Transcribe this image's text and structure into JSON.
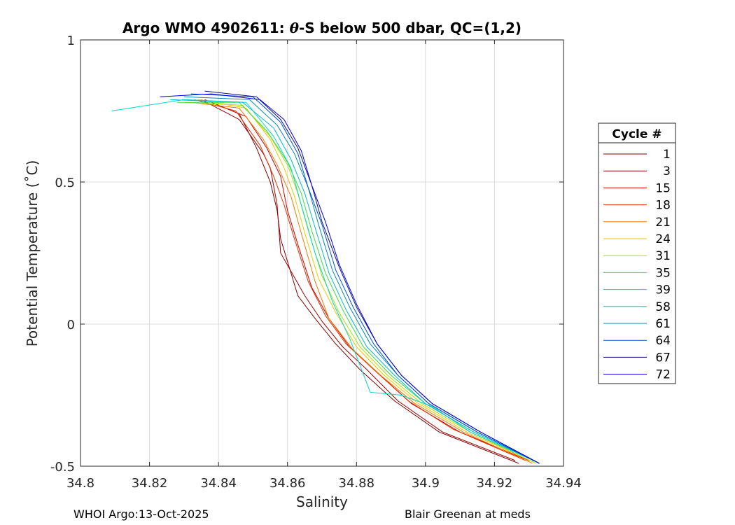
{
  "footer": {
    "left": "WHOI Argo:13-Oct-2025",
    "right": "Blair Greenan at meds"
  },
  "chart_data": {
    "type": "line",
    "title_prefix": "Argo WMO 4902611: ",
    "title_theta": "θ",
    "title_suffix": "-S below 500 dbar,  QC=(1,2)",
    "xlabel": "Salinity",
    "ylabel": "Potential Temperature (˚C)",
    "xlim": [
      34.8,
      34.94
    ],
    "ylim": [
      -0.5,
      1
    ],
    "xticks": [
      34.8,
      34.82,
      34.84,
      34.86,
      34.88,
      34.9,
      34.92,
      34.94
    ],
    "xtick_labels": [
      "34.8",
      "34.82",
      "34.84",
      "34.86",
      "34.88",
      "34.9",
      "34.92",
      "34.94"
    ],
    "yticks": [
      -0.5,
      0,
      0.5,
      1
    ],
    "ytick_labels": [
      "-0.5",
      "0",
      "0.5",
      "1"
    ],
    "grid": true,
    "legend_title": "Cycle #",
    "legend_position": "right",
    "series": [
      {
        "name": "1",
        "color": "#800000",
        "x": [
          34.836,
          34.846,
          34.851,
          34.855,
          34.857,
          34.858,
          34.863,
          34.868,
          34.874,
          34.881,
          34.891,
          34.904,
          34.927
        ],
        "y": [
          0.79,
          0.74,
          0.62,
          0.5,
          0.4,
          0.3,
          0.1,
          0.02,
          -0.07,
          -0.16,
          -0.27,
          -0.38,
          -0.49
        ]
      },
      {
        "name": "3",
        "color": "#9a0000",
        "x": [
          34.835,
          34.846,
          34.853,
          34.855,
          34.857,
          34.858,
          34.865,
          34.87,
          34.876,
          34.883,
          34.892,
          34.905,
          34.926
        ],
        "y": [
          0.79,
          0.72,
          0.6,
          0.55,
          0.42,
          0.25,
          0.1,
          0.01,
          -0.08,
          -0.16,
          -0.27,
          -0.38,
          -0.48
        ]
      },
      {
        "name": "15",
        "color": "#cc0000",
        "x": [
          34.838,
          34.848,
          34.854,
          34.858,
          34.86,
          34.863,
          34.867,
          34.872,
          34.878,
          34.886,
          34.896,
          34.91,
          34.93
        ],
        "y": [
          0.78,
          0.73,
          0.62,
          0.52,
          0.4,
          0.28,
          0.13,
          0.02,
          -0.08,
          -0.17,
          -0.28,
          -0.38,
          -0.48
        ]
      },
      {
        "name": "18",
        "color": "#e03000",
        "x": [
          34.833,
          34.845,
          34.852,
          34.856,
          34.859,
          34.862,
          34.866,
          34.871,
          34.877,
          34.885,
          34.895,
          34.908,
          34.929
        ],
        "y": [
          0.79,
          0.75,
          0.63,
          0.52,
          0.42,
          0.3,
          0.15,
          0.03,
          -0.07,
          -0.16,
          -0.27,
          -0.37,
          -0.48
        ]
      },
      {
        "name": "21",
        "color": "#f07800",
        "x": [
          34.832,
          34.846,
          34.853,
          34.857,
          34.861,
          34.864,
          34.868,
          34.872,
          34.879,
          34.887,
          34.897,
          34.911,
          34.931
        ],
        "y": [
          0.78,
          0.76,
          0.65,
          0.56,
          0.45,
          0.32,
          0.15,
          0.02,
          -0.09,
          -0.18,
          -0.28,
          -0.38,
          -0.49
        ]
      },
      {
        "name": "24",
        "color": "#e8c800",
        "x": [
          34.834,
          34.848,
          34.855,
          34.859,
          34.862,
          34.865,
          34.869,
          34.874,
          34.88,
          34.888,
          34.898,
          34.912,
          34.932
        ],
        "y": [
          0.79,
          0.76,
          0.65,
          0.55,
          0.45,
          0.32,
          0.16,
          0.04,
          -0.08,
          -0.18,
          -0.28,
          -0.38,
          -0.49
        ]
      },
      {
        "name": "31",
        "color": "#a8e000",
        "x": [
          34.83,
          34.847,
          34.855,
          34.86,
          34.863,
          34.866,
          34.87,
          34.875,
          34.881,
          34.889,
          34.899,
          34.913,
          34.932
        ],
        "y": [
          0.78,
          0.77,
          0.66,
          0.56,
          0.46,
          0.33,
          0.17,
          0.04,
          -0.08,
          -0.18,
          -0.28,
          -0.38,
          -0.49
        ]
      },
      {
        "name": "35",
        "color": "#3adc3a",
        "x": [
          34.828,
          34.846,
          34.854,
          34.86,
          34.864,
          34.867,
          34.871,
          34.876,
          34.882,
          34.89,
          34.9,
          34.914,
          34.933
        ],
        "y": [
          0.78,
          0.78,
          0.68,
          0.57,
          0.46,
          0.33,
          0.18,
          0.05,
          -0.08,
          -0.18,
          -0.28,
          -0.38,
          -0.49
        ]
      },
      {
        "name": "39",
        "color": "#00d8c8",
        "x": [
          34.809,
          34.83,
          34.848,
          34.856,
          34.861,
          34.864,
          34.868,
          34.873,
          34.878,
          34.884,
          34.893,
          34.902,
          34.913,
          34.933
        ],
        "y": [
          0.75,
          0.79,
          0.78,
          0.66,
          0.55,
          0.42,
          0.25,
          0.08,
          -0.05,
          -0.24,
          -0.25,
          -0.29,
          -0.38,
          -0.49
        ]
      },
      {
        "name": "58",
        "color": "#00b8d8",
        "x": [
          34.826,
          34.847,
          34.856,
          34.861,
          34.865,
          34.868,
          34.872,
          34.877,
          34.883,
          34.891,
          34.9,
          34.914,
          34.933
        ],
        "y": [
          0.79,
          0.78,
          0.69,
          0.58,
          0.46,
          0.34,
          0.18,
          0.05,
          -0.08,
          -0.18,
          -0.28,
          -0.38,
          -0.49
        ]
      },
      {
        "name": "61",
        "color": "#0088b0",
        "x": [
          34.83,
          34.849,
          34.857,
          34.862,
          34.866,
          34.869,
          34.873,
          34.878,
          34.884,
          34.892,
          34.901,
          34.915,
          34.933
        ],
        "y": [
          0.8,
          0.79,
          0.7,
          0.6,
          0.48,
          0.35,
          0.19,
          0.06,
          -0.07,
          -0.18,
          -0.28,
          -0.38,
          -0.49
        ]
      },
      {
        "name": "64",
        "color": "#0050d0",
        "x": [
          34.832,
          34.85,
          34.858,
          34.863,
          34.866,
          34.87,
          34.874,
          34.879,
          34.885,
          34.892,
          34.901,
          34.915,
          34.933
        ],
        "y": [
          0.81,
          0.8,
          0.71,
          0.6,
          0.48,
          0.35,
          0.19,
          0.06,
          -0.07,
          -0.18,
          -0.28,
          -0.38,
          -0.49
        ]
      },
      {
        "name": "67",
        "color": "#101080",
        "x": [
          34.836,
          34.851,
          34.858,
          34.863,
          34.867,
          34.87,
          34.875,
          34.88,
          34.886,
          34.893,
          34.902,
          34.916,
          34.933
        ],
        "y": [
          0.82,
          0.8,
          0.72,
          0.62,
          0.49,
          0.36,
          0.2,
          0.06,
          -0.07,
          -0.18,
          -0.28,
          -0.38,
          -0.49
        ]
      },
      {
        "name": "72",
        "color": "#0000e0",
        "x": [
          34.823,
          34.838,
          34.852,
          34.859,
          34.864,
          34.867,
          34.871,
          34.875,
          34.88,
          34.886,
          34.893,
          34.902,
          34.916,
          34.933
        ],
        "y": [
          0.8,
          0.81,
          0.79,
          0.72,
          0.61,
          0.49,
          0.36,
          0.21,
          0.07,
          -0.07,
          -0.18,
          -0.28,
          -0.38,
          -0.49
        ]
      }
    ]
  }
}
